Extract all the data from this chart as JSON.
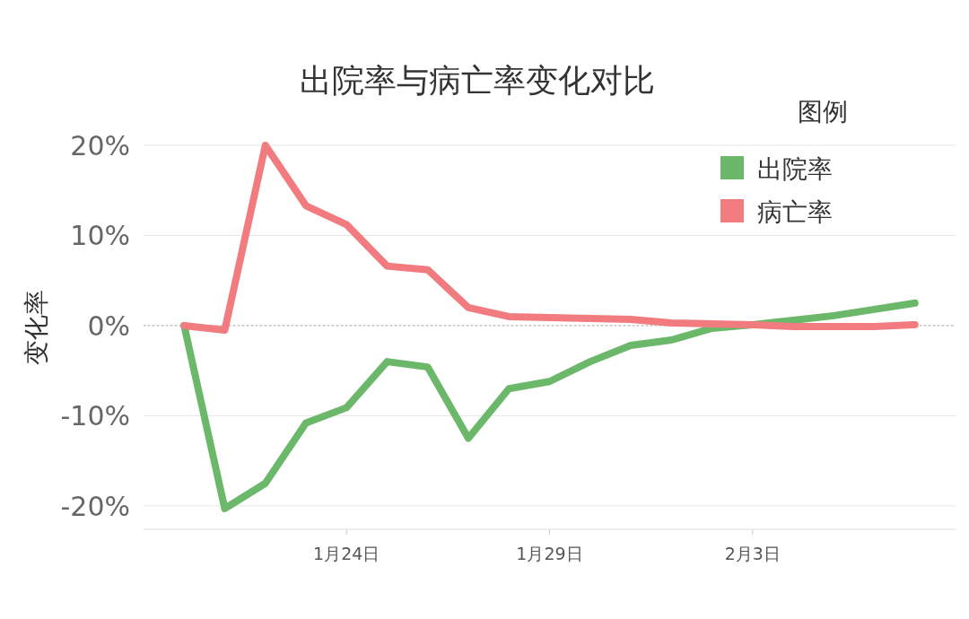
{
  "chart_data": {
    "type": "line",
    "title": "出院率与病亡率变化对比",
    "ylabel": "变化率",
    "legend_title": "图例",
    "legend": "top right",
    "grid": "y",
    "marker": "none",
    "line_style": "solid",
    "x": [
      "--01-20",
      "--01-21",
      "--01-22",
      "--01-23",
      "--01-24",
      "--01-25",
      "--01-26",
      "--01-27",
      "--01-28",
      "--01-29",
      "--01-30",
      "--01-31",
      "--02-01",
      "--02-02",
      "--02-03",
      "--02-04",
      "--02-05",
      "--02-06",
      "--02-07"
    ],
    "series": [
      {
        "name": "出院率",
        "color": "#6bb86b",
        "values": [
          0,
          -20.3,
          -17.5,
          -10.8,
          -9.1,
          -4.0,
          -4.6,
          -12.5,
          -7.0,
          -6.2,
          -4.0,
          -2.2,
          -1.6,
          -0.3,
          0.1,
          0.6,
          1.1,
          1.8,
          2.5
        ]
      },
      {
        "name": "病亡率",
        "color": "#f27b7f",
        "values": [
          0,
          -0.5,
          20,
          13.3,
          11.2,
          6.6,
          6.2,
          2.0,
          1.0,
          0.9,
          0.8,
          0.7,
          0.3,
          0.2,
          0.1,
          -0.1,
          -0.1,
          -0.1,
          0.1
        ]
      }
    ],
    "xlim": [
      "--01-19",
      "--02-08"
    ],
    "xticks": [
      {
        "value": "--01-24",
        "label": "1月24日"
      },
      {
        "value": "--01-29",
        "label": "1月29日"
      },
      {
        "value": "--02-03",
        "label": "2月3日"
      }
    ],
    "ylim": [
      -22.6,
      20
    ],
    "yticks": [
      {
        "value": -20,
        "label": "-20%"
      },
      {
        "value": -10,
        "label": "-10%"
      },
      {
        "value": 0,
        "label": "0%"
      },
      {
        "value": 10,
        "label": "10%"
      },
      {
        "value": 20,
        "label": "20%"
      }
    ],
    "ref_lines": [
      {
        "axis": "y",
        "value": 0,
        "color": "#aaaaaa",
        "line_style": "dotted"
      }
    ]
  }
}
